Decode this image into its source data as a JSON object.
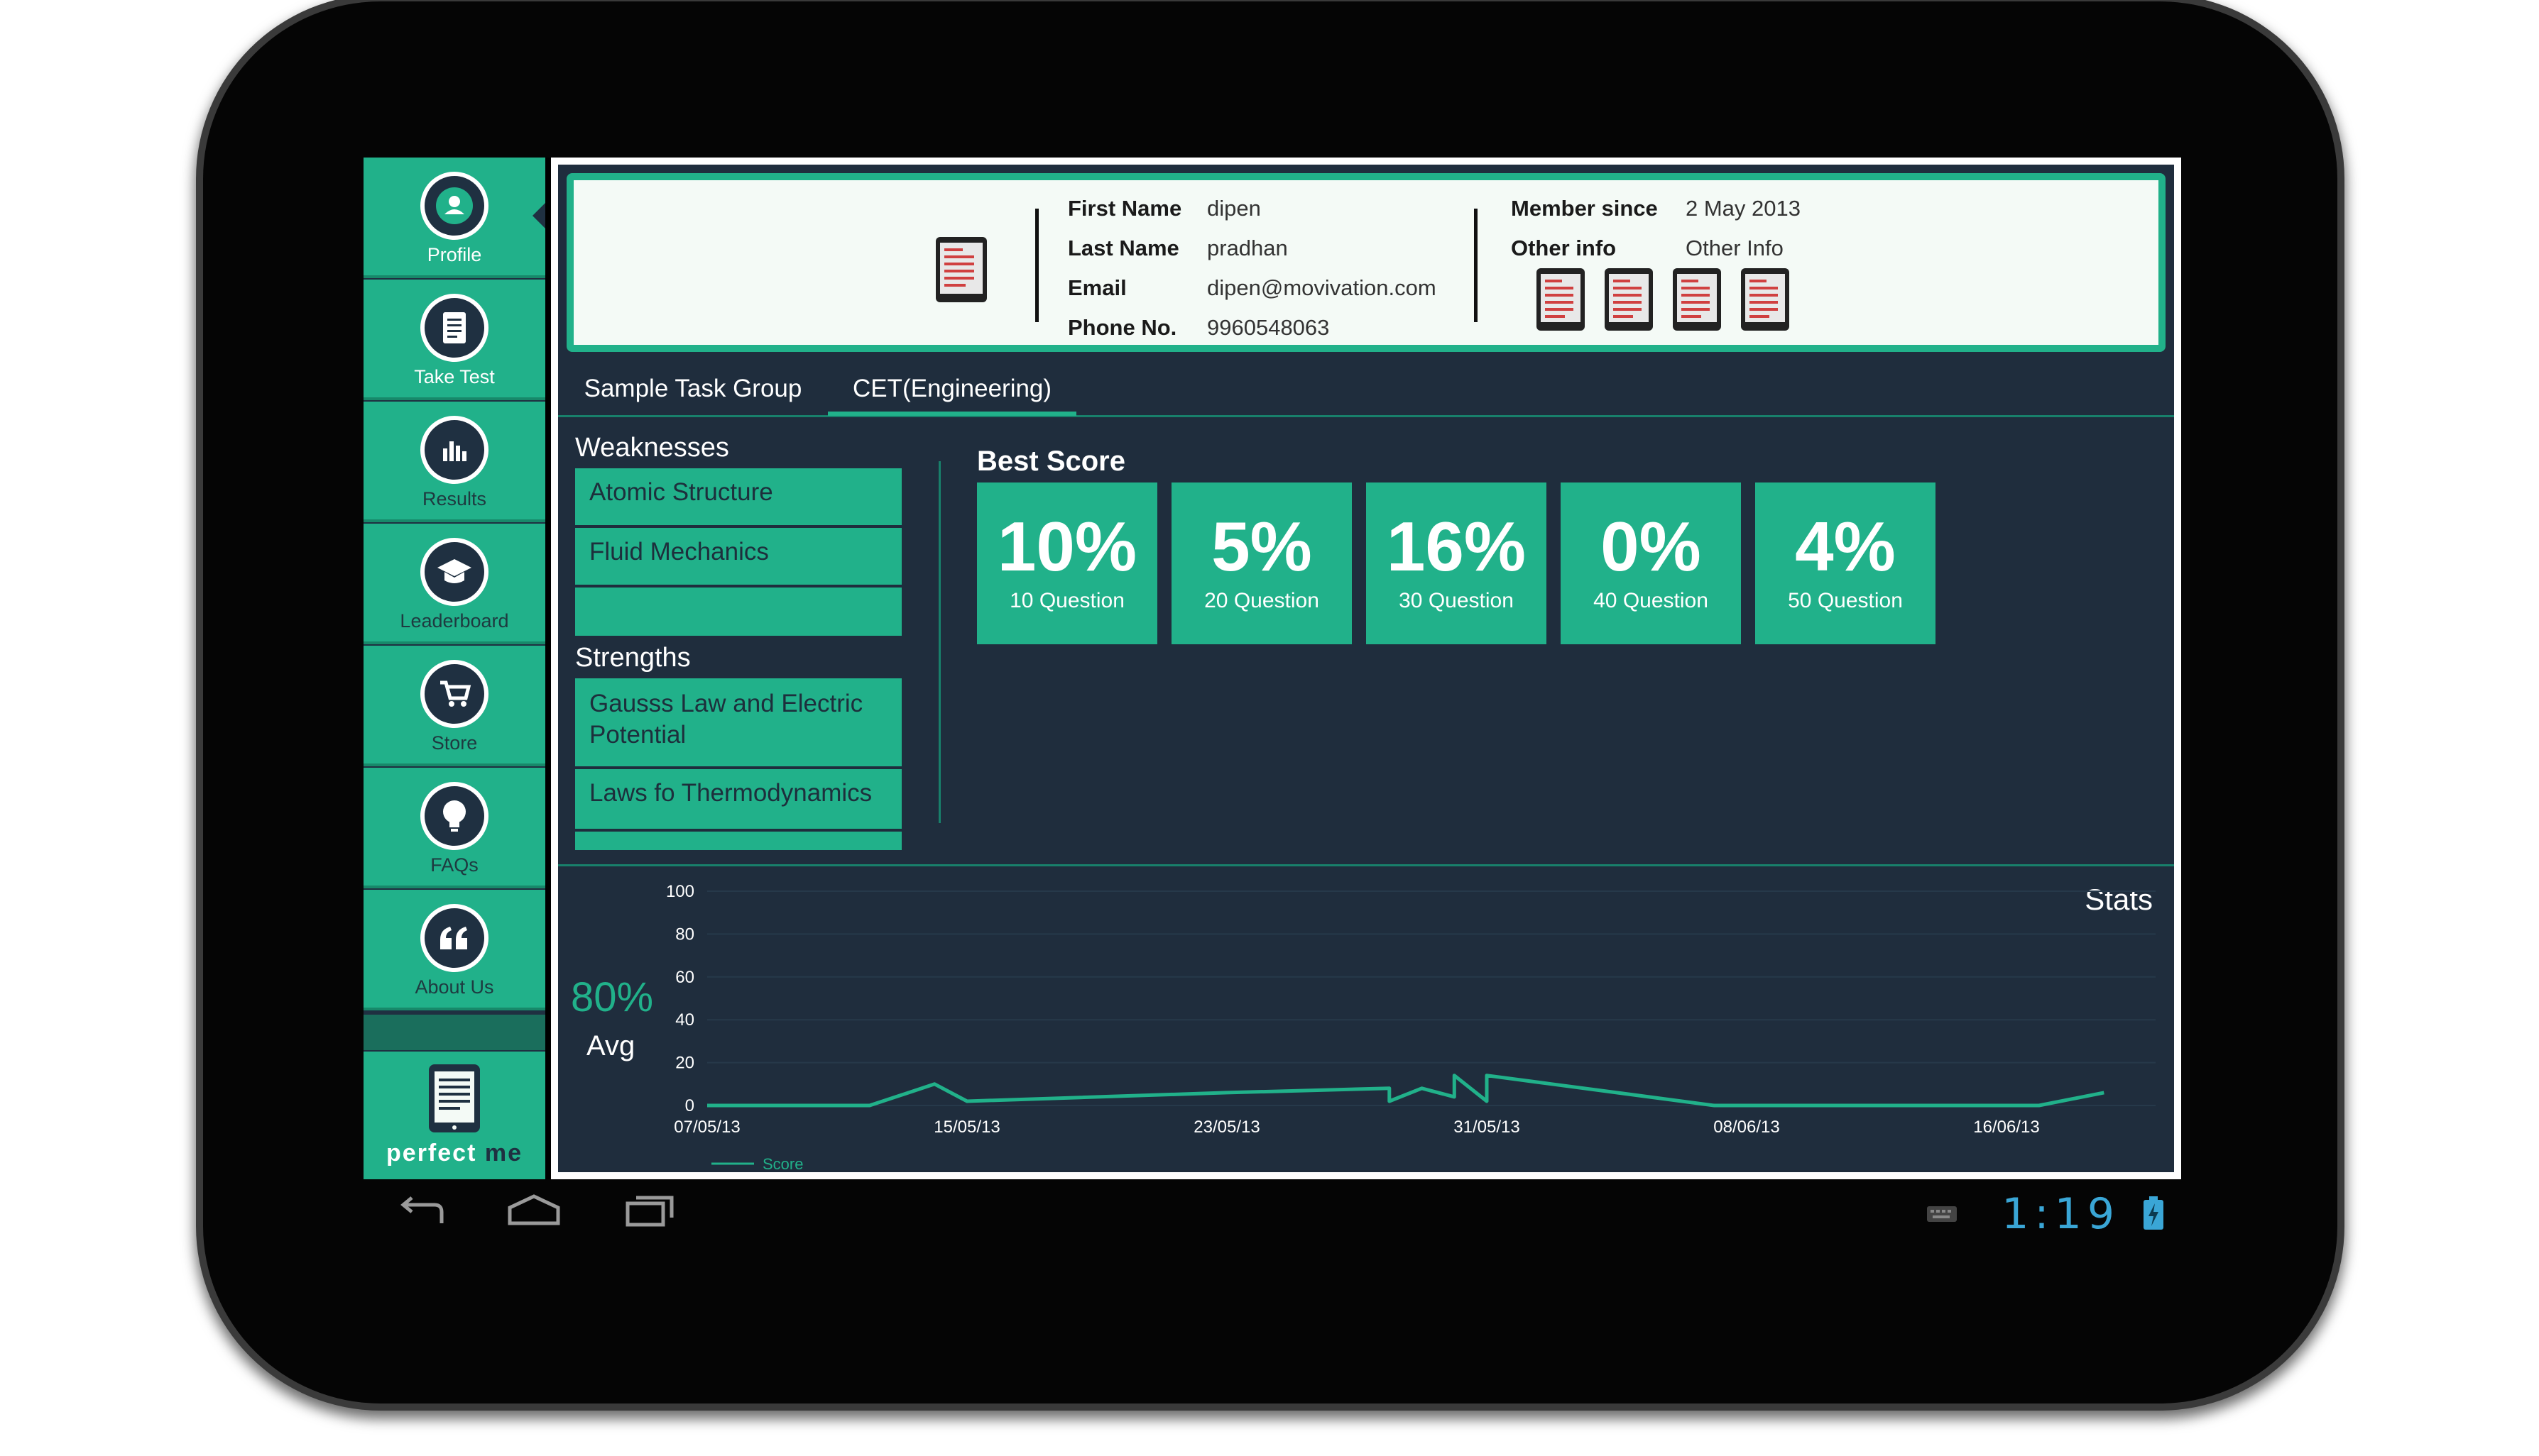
{
  "sidebar": {
    "items": [
      {
        "label": "Profile",
        "icon": "user-icon"
      },
      {
        "label": "Take Test",
        "icon": "document-icon"
      },
      {
        "label": "Results",
        "icon": "bar-chart-icon"
      },
      {
        "label": "Leaderboard",
        "icon": "graduation-cap-icon"
      },
      {
        "label": "Store",
        "icon": "cart-icon"
      },
      {
        "label": "FAQs",
        "icon": "lightbulb-icon"
      },
      {
        "label": "About Us",
        "icon": "quote-icon"
      }
    ],
    "brand_perfect": "perfect",
    "brand_me": "me"
  },
  "profile": {
    "first_name_label": "First Name",
    "first_name": "dipen",
    "last_name_label": "Last Name",
    "last_name": "pradhan",
    "email_label": "Email",
    "email": "dipen@movivation.com",
    "phone_label": "Phone No.",
    "phone": "9960548063",
    "member_since_label": "Member since",
    "member_since": "2 May 2013",
    "other_info_label": "Other info",
    "other_info": "Other Info"
  },
  "tabs": [
    {
      "label": "Sample Task Group",
      "active": false
    },
    {
      "label": "CET(Engineering)",
      "active": true
    }
  ],
  "weaknesses": {
    "title": "Weaknesses",
    "items": [
      "Atomic Structure",
      "Fluid Mechanics",
      ""
    ]
  },
  "strengths": {
    "title": "Strengths",
    "items": [
      "Gausss Law and Electric Potential",
      "Laws fo Thermodynamics",
      ""
    ]
  },
  "best_score": {
    "title": "Best Score",
    "tiles": [
      {
        "pct": "10%",
        "label": "10 Question"
      },
      {
        "pct": "5%",
        "label": "20 Question"
      },
      {
        "pct": "16%",
        "label": "30 Question"
      },
      {
        "pct": "0%",
        "label": "40 Question"
      },
      {
        "pct": "4%",
        "label": "50 Question"
      }
    ]
  },
  "stats": {
    "title": "Stats",
    "avg_value": "80%",
    "avg_label": "Avg"
  },
  "chart_data": {
    "type": "line",
    "ylim": [
      0,
      100
    ],
    "y_ticks": [
      "0",
      "20",
      "40",
      "60",
      "80",
      "100"
    ],
    "x_ticks": [
      "07/05/13",
      "15/05/13",
      "23/05/13",
      "31/05/13",
      "08/06/13",
      "16/06/13"
    ],
    "legend": "Score",
    "color": "#21b18a",
    "series": [
      {
        "name": "Score",
        "points": [
          [
            "07/05/13",
            0
          ],
          [
            "12/05/13",
            0
          ],
          [
            "14/05/13",
            10
          ],
          [
            "15/05/13",
            2
          ],
          [
            "23/05/13",
            6
          ],
          [
            "28/05/13",
            8
          ],
          [
            "28/05/13",
            2
          ],
          [
            "29/05/13",
            8
          ],
          [
            "30/05/13",
            4
          ],
          [
            "30/05/13",
            14
          ],
          [
            "31/05/13",
            2
          ],
          [
            "31/05/13",
            14
          ],
          [
            "02/06/13",
            10
          ],
          [
            "07/06/13",
            0
          ],
          [
            "17/06/13",
            0
          ],
          [
            "19/06/13",
            6
          ]
        ]
      }
    ]
  },
  "status_bar": {
    "time": "1:19"
  },
  "colors": {
    "accent": "#21b18a",
    "panel": "#1f2d3d",
    "clock": "#3aa6d6"
  }
}
